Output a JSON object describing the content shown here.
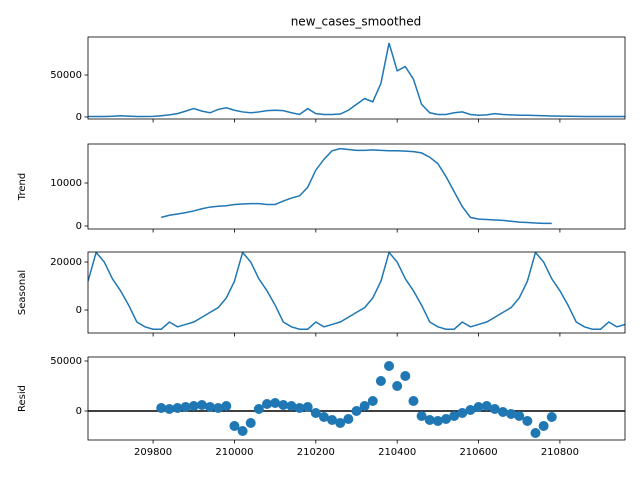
{
  "chart_data": [
    {
      "type": "line",
      "title": "new_cases_smoothed",
      "color": "#1f77b4",
      "x": [
        209640,
        209660,
        209680,
        209700,
        209720,
        209740,
        209760,
        209780,
        209800,
        209820,
        209840,
        209860,
        209880,
        209900,
        209920,
        209940,
        209960,
        209980,
        210000,
        210020,
        210040,
        210060,
        210080,
        210100,
        210120,
        210140,
        210160,
        210180,
        210200,
        210220,
        210240,
        210260,
        210280,
        210300,
        210320,
        210340,
        210360,
        210380,
        210400,
        210420,
        210440,
        210460,
        210480,
        210500,
        210520,
        210540,
        210560,
        210580,
        210600,
        210620,
        210640,
        210660,
        210680,
        210700,
        210720,
        210740,
        210760,
        210780,
        210800,
        210820,
        210840,
        210860,
        210880,
        210900,
        210920,
        210940,
        210960
      ],
      "values": [
        500,
        500,
        500,
        800,
        1500,
        1000,
        600,
        500,
        700,
        1500,
        2500,
        4000,
        7000,
        10000,
        7000,
        5000,
        9000,
        11000,
        8000,
        6000,
        5000,
        6000,
        7500,
        8000,
        7500,
        5000,
        3000,
        10000,
        4000,
        3000,
        3000,
        3500,
        8000,
        15000,
        22000,
        18000,
        40000,
        88000,
        55000,
        60000,
        45000,
        15000,
        5000,
        3000,
        3000,
        5000,
        6000,
        3000,
        2000,
        2500,
        4000,
        3000,
        2500,
        2000,
        2000,
        1800,
        1500,
        1200,
        1000,
        800,
        700,
        600,
        600,
        600,
        500,
        500,
        500
      ],
      "xlim": [
        209640,
        210960
      ],
      "ylim": [
        -2400,
        95200
      ],
      "yticks": [
        0,
        50000
      ]
    },
    {
      "type": "line",
      "ylabel": "Trend",
      "color": "#1f77b4",
      "x": [
        209640,
        209660,
        209680,
        209700,
        209720,
        209740,
        209760,
        209780,
        209800,
        209820,
        209840,
        209860,
        209880,
        209900,
        209920,
        209940,
        209960,
        209980,
        210000,
        210020,
        210040,
        210060,
        210080,
        210100,
        210120,
        210140,
        210160,
        210180,
        210200,
        210220,
        210240,
        210260,
        210280,
        210300,
        210320,
        210340,
        210360,
        210380,
        210400,
        210420,
        210440,
        210460,
        210480,
        210500,
        210520,
        210540,
        210560,
        210580,
        210600,
        210620,
        210640,
        210660,
        210680,
        210700,
        210720,
        210740,
        210760,
        210780,
        210800,
        210820,
        210840,
        210860,
        210880,
        210900,
        210920,
        210940,
        210960
      ],
      "values": [
        null,
        null,
        null,
        null,
        null,
        null,
        null,
        null,
        null,
        2000,
        2500,
        2800,
        3100,
        3500,
        4000,
        4400,
        4600,
        4700,
        5000,
        5100,
        5200,
        5200,
        5000,
        5000,
        5800,
        6500,
        7000,
        9000,
        13000,
        15500,
        17500,
        18000,
        17800,
        17600,
        17600,
        17700,
        17600,
        17500,
        17500,
        17400,
        17300,
        17000,
        16000,
        14500,
        11500,
        8000,
        4500,
        2000,
        1600,
        1500,
        1400,
        1300,
        1100,
        900,
        800,
        700,
        600,
        600,
        null,
        null,
        null,
        null,
        null,
        null,
        null,
        null,
        null
      ],
      "xlim": [
        209640,
        210960
      ],
      "ylim": [
        -700,
        19070
      ],
      "yticks": [
        0,
        10000
      ]
    },
    {
      "type": "line",
      "ylabel": "Seasonal",
      "color": "#1f77b4",
      "x": [
        209640,
        209660,
        209680,
        209700,
        209720,
        209740,
        209760,
        209780,
        209800,
        209820,
        209840,
        209860,
        209880,
        209900,
        209920,
        209940,
        209960,
        209980,
        210000,
        210020,
        210040,
        210060,
        210080,
        210100,
        210120,
        210140,
        210160,
        210180,
        210200,
        210220,
        210240,
        210260,
        210280,
        210300,
        210320,
        210340,
        210360,
        210380,
        210400,
        210420,
        210440,
        210460,
        210480,
        210500,
        210520,
        210540,
        210560,
        210580,
        210600,
        210620,
        210640,
        210660,
        210680,
        210700,
        210720,
        210740,
        210760,
        210780,
        210800,
        210820,
        210840,
        210860,
        210880,
        210900,
        210920,
        210940,
        210960
      ],
      "values": [
        12000,
        24000,
        20000,
        13000,
        8000,
        2000,
        -5000,
        -7000,
        -8000,
        -8000,
        -5000,
        -7000,
        -6000,
        -5000,
        -3000,
        -1000,
        1000,
        5000,
        12000,
        24000,
        20000,
        13000,
        8000,
        2000,
        -5000,
        -7000,
        -8000,
        -8000,
        -5000,
        -7000,
        -6000,
        -5000,
        -3000,
        -1000,
        1000,
        5000,
        12000,
        24000,
        20000,
        13000,
        8000,
        2000,
        -5000,
        -7000,
        -8000,
        -8000,
        -5000,
        -7000,
        -6000,
        -5000,
        -3000,
        -1000,
        1000,
        5000,
        12000,
        24000,
        20000,
        13000,
        8000,
        2000,
        -5000,
        -7000,
        -8000,
        -8000,
        -5000,
        -7000,
        -6000
      ],
      "xlim": [
        209640,
        210960
      ],
      "ylim": [
        -9580,
        24170
      ],
      "yticks": [
        0,
        20000
      ]
    },
    {
      "type": "scatter",
      "ylabel": "Resid",
      "color": "#1f77b4",
      "hline": 0,
      "x": [
        209640,
        209660,
        209680,
        209700,
        209720,
        209740,
        209760,
        209780,
        209800,
        209820,
        209840,
        209860,
        209880,
        209900,
        209920,
        209940,
        209960,
        209980,
        210000,
        210020,
        210040,
        210060,
        210080,
        210100,
        210120,
        210140,
        210160,
        210180,
        210200,
        210220,
        210240,
        210260,
        210280,
        210300,
        210320,
        210340,
        210360,
        210380,
        210400,
        210420,
        210440,
        210460,
        210480,
        210500,
        210520,
        210540,
        210560,
        210580,
        210600,
        210620,
        210640,
        210660,
        210680,
        210700,
        210720,
        210740,
        210760,
        210780,
        210800,
        210820,
        210840,
        210860,
        210880,
        210900,
        210920,
        210940,
        210960
      ],
      "values": [
        null,
        null,
        null,
        null,
        null,
        null,
        null,
        null,
        null,
        3000,
        2000,
        3000,
        4000,
        5000,
        6000,
        4000,
        3000,
        5000,
        -15000,
        -20000,
        -12000,
        2000,
        7000,
        8000,
        6000,
        5000,
        3000,
        4000,
        -2000,
        -6000,
        -9000,
        -12000,
        -8000,
        0,
        5000,
        10000,
        30000,
        45000,
        25000,
        35000,
        10000,
        -5000,
        -9000,
        -10000,
        -8000,
        -5000,
        -2000,
        1000,
        4000,
        5000,
        2000,
        -1000,
        -3000,
        -5000,
        -10000,
        -22000,
        -15000,
        -6000,
        null,
        null,
        null,
        null,
        null,
        null,
        null,
        null,
        null
      ],
      "xlim": [
        209640,
        210960
      ],
      "ylim": [
        -29000,
        54000
      ],
      "yticks": [
        0,
        50000
      ],
      "xticks": [
        209800,
        210000,
        210200,
        210400,
        210600,
        210800
      ]
    }
  ]
}
